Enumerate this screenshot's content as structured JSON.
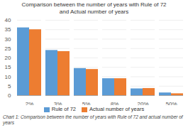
{
  "chart_data": {
    "type": "bar",
    "title": "Comparison between the number of years with Rule of 72\nand Actual number of years",
    "caption": "Chart 1: Comparison between the number of years with Rule of 72 and actual number of years",
    "categories": [
      "2%",
      "3%",
      "5%",
      "8%",
      "20%",
      "50%"
    ],
    "series": [
      {
        "name": "Rule of 72",
        "color": "#5b9bd5",
        "values": [
          36,
          24,
          14.4,
          9,
          3.6,
          1.44
        ]
      },
      {
        "name": "Actual number of years",
        "color": "#ed7d31",
        "values": [
          35,
          23.4,
          13.9,
          9,
          3.8,
          1.0
        ]
      }
    ],
    "ylim": [
      0,
      40
    ],
    "yticks": [
      0,
      5,
      10,
      15,
      20,
      25,
      30,
      35,
      40
    ],
    "grid": true,
    "legend": "bottom"
  }
}
